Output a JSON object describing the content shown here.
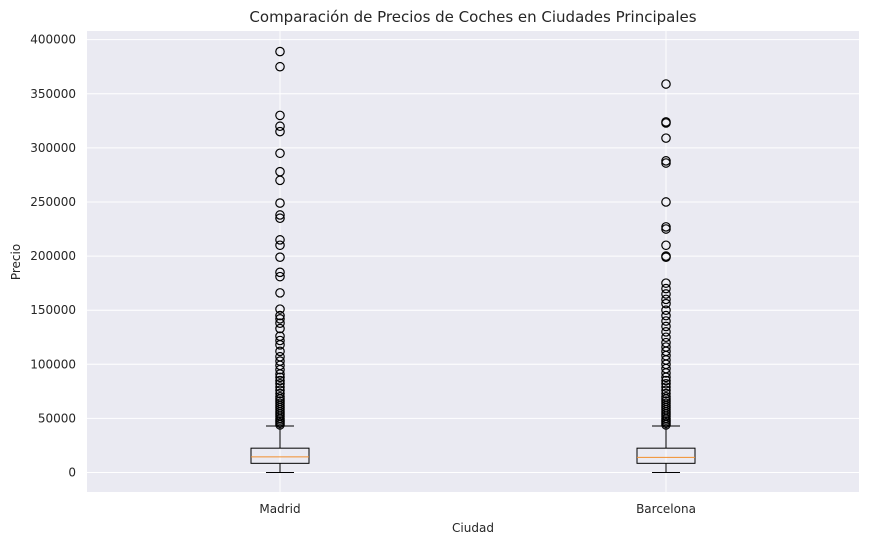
{
  "chart_data": {
    "type": "box",
    "title": "Comparación de Precios de Coches en Ciudades Principales",
    "xlabel": "Ciudad",
    "ylabel": "Precio",
    "ylim": [
      -18000,
      408000
    ],
    "yticks": [
      0,
      50000,
      100000,
      150000,
      200000,
      250000,
      300000,
      350000,
      400000
    ],
    "grid": true,
    "colors": {
      "background": "#eaeaf2",
      "grid": "#ffffff",
      "box": "#000000",
      "median": "#f28e2b"
    },
    "categories": [
      "Madrid",
      "Barcelona"
    ],
    "boxes": [
      {
        "name": "Madrid",
        "whisker_low": 0,
        "q1": 8500,
        "median": 14500,
        "q3": 22500,
        "whisker_high": 43000,
        "outliers": [
          389000,
          375000,
          330000,
          320000,
          315000,
          295000,
          278000,
          270000,
          249000,
          238000,
          235000,
          215000,
          210000,
          199000,
          185000,
          181000,
          166000,
          151000,
          145000,
          142000,
          138000,
          133000,
          126000,
          122000,
          118000,
          112000,
          107000,
          103000,
          99000,
          95000,
          91000,
          88000,
          85000,
          82000,
          79000,
          76000,
          73000,
          70000,
          68000,
          66000,
          64000,
          62000,
          60000,
          58000,
          56000,
          54000,
          52000,
          50000,
          48500,
          47000,
          45500,
          44000
        ]
      },
      {
        "name": "Barcelona",
        "whisker_low": 0,
        "q1": 8500,
        "median": 14000,
        "q3": 22500,
        "whisker_high": 43000,
        "outliers": [
          359000,
          324000,
          323000,
          309000,
          288000,
          286000,
          250000,
          227000,
          225000,
          210000,
          200000,
          199000,
          175000,
          170000,
          165000,
          160000,
          156000,
          150000,
          145000,
          140000,
          135000,
          130000,
          125000,
          120000,
          116000,
          112000,
          108000,
          104000,
          100000,
          96000,
          92000,
          88000,
          85000,
          82000,
          79000,
          76000,
          73000,
          70000,
          68000,
          66000,
          64000,
          62000,
          60000,
          58000,
          56000,
          54000,
          52000,
          50000,
          48500,
          47000,
          45500,
          44000
        ]
      }
    ]
  }
}
